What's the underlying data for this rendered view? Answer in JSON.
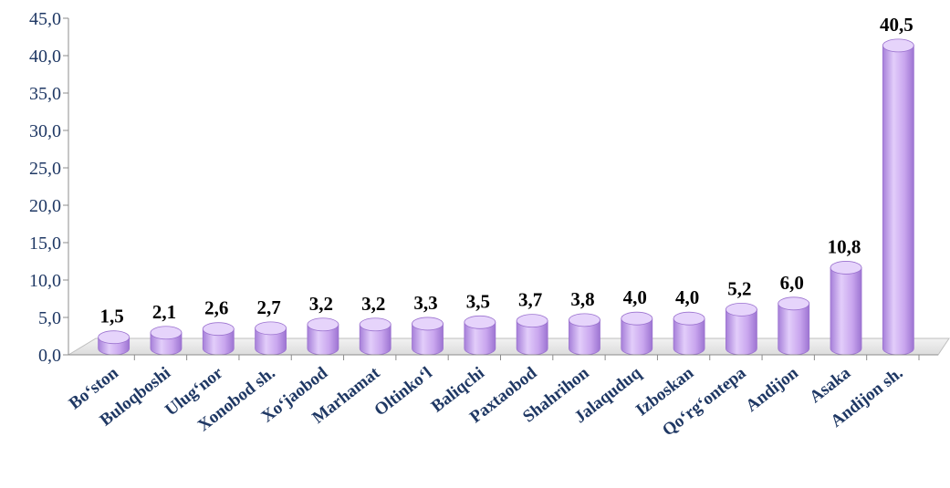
{
  "chart_data": {
    "type": "bar",
    "style": "3d-cylinder",
    "title": "",
    "xlabel": "",
    "ylabel": "",
    "categories": [
      "Bo‘ston",
      "Buloqboshi",
      "Ulug‘nor",
      "Xonobod sh.",
      "Xo‘jaobod",
      "Marhamat",
      "Oltinko‘l",
      "Baliqchi",
      "Paxtaobod",
      "Shahrihon",
      "Jalaquduq",
      "Izboskan",
      "Qo‘rg‘ontepa",
      "Andijon",
      "Asaka",
      "Andijon sh."
    ],
    "values": [
      1.5,
      2.1,
      2.6,
      2.7,
      3.2,
      3.2,
      3.3,
      3.5,
      3.7,
      3.8,
      4.0,
      4.0,
      5.2,
      6.0,
      10.8,
      40.5
    ],
    "value_labels": [
      "1,5",
      "2,1",
      "2,6",
      "2,7",
      "3,2",
      "3,2",
      "3,3",
      "3,5",
      "3,7",
      "3,8",
      "4,0",
      "4,0",
      "5,2",
      "6,0",
      "10,8",
      "40,5"
    ],
    "yticks": [
      "0,0",
      "5,0",
      "10,0",
      "15,0",
      "20,0",
      "25,0",
      "30,0",
      "35,0",
      "40,0",
      "45,0"
    ],
    "ylim": [
      0,
      45
    ],
    "grid": false,
    "legend": "none",
    "colors": {
      "bar_fill": "#c5a3ec",
      "bar_top": "#e6d4fb",
      "bar_edge": "#9b72cf",
      "axis_text": "#1f3864",
      "label_text": "#000000"
    }
  }
}
